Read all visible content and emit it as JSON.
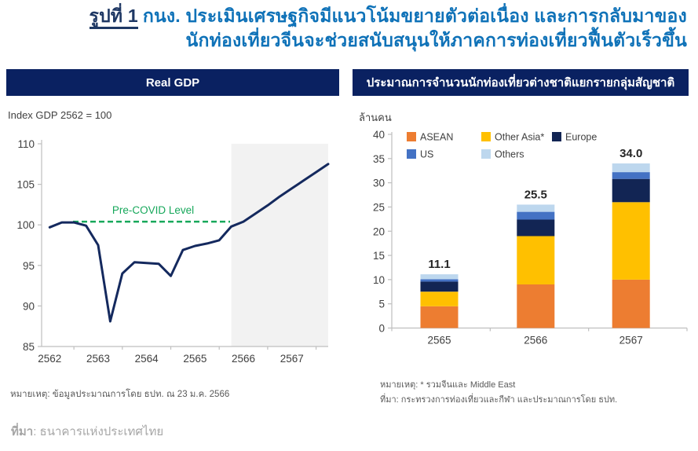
{
  "title": {
    "figure_label": "รูปที่ 1",
    "text_line1": "กนง. ประเมินเศรษฐกิจมีแนวโน้มขยายตัวต่อเนื่อง และการกลับมาของ",
    "text_line2": "นักท่องเที่ยวจีนจะช่วยสนับสนุนให้ภาคการท่องเที่ยวฟื้นตัวเร็วขึ้น"
  },
  "left_panel": {
    "header": "Real GDP",
    "unit_label": "Index GDP 2562 = 100",
    "note": "หมายเหตุ: ข้อมูลประมาณการโดย ธปท. ณ 23 ม.ค. 2566"
  },
  "right_panel": {
    "header": "ประมาณการจำนวนนักท่องเที่ยวต่างชาติแยกรายกลุ่มสัญชาติ",
    "unit_label": "ล้านคน",
    "note1": "หมายเหตุ: * รวมจีนและ Middle East",
    "note2": "ที่มา: กระทรวงการท่องเที่ยวและกีฬา และประมาณการโดย ธปท."
  },
  "footer": {
    "source_label": "ที่มา",
    "source_text": ": ธนาคารแห่งประเทศไทย"
  },
  "colors": {
    "title_figure": "#1F3864",
    "title_main": "#0F72B8",
    "header_bg": "#0A2161",
    "header_text": "#FFFFFF",
    "gdp_line": "#14295E",
    "pre_covid_green": "#17A85B",
    "forecast_shading": "#F2F2F2",
    "axis_line": "#BFBFBF",
    "tick_text": "#404040",
    "bar_label_text": "#262626",
    "note_text": "#595959",
    "footer_text": "#A6A6A6"
  },
  "chart_data": [
    {
      "type": "line",
      "title": "Real GDP",
      "ylabel": "Index GDP 2562 = 100",
      "x_years": [
        "2562",
        "2563",
        "2564",
        "2565",
        "2566",
        "2567"
      ],
      "points_per_year": 4,
      "values_quarterly": [
        99.7,
        100.3,
        100.3,
        99.9,
        97.5,
        88.1,
        94.0,
        95.4,
        95.3,
        95.2,
        93.7,
        96.9,
        97.4,
        97.7,
        98.1,
        99.8,
        100.4,
        101.4,
        102.4,
        103.5,
        104.5,
        105.5,
        106.5,
        107.5
      ],
      "ylim": [
        85,
        110
      ],
      "yticks": [
        85,
        90,
        95,
        100,
        105,
        110
      ],
      "grid": false,
      "annotation": {
        "label": "Pre-COVID Level",
        "level": 100.4,
        "style": "green-dashed-horizontal"
      },
      "forecast_region": {
        "start_quarter_index": 15,
        "style": "gray-shaded"
      }
    },
    {
      "type": "bar",
      "stacked": true,
      "categories": [
        "2565",
        "2566",
        "2567"
      ],
      "series": [
        {
          "name": "ASEAN",
          "color": "#ED7D31",
          "values": [
            4.5,
            9.0,
            10.0
          ]
        },
        {
          "name": "Other Asia*",
          "color": "#FFC000",
          "values": [
            3.0,
            10.0,
            16.0
          ]
        },
        {
          "name": "Europe",
          "color": "#122554",
          "values": [
            2.1,
            3.4,
            4.8
          ]
        },
        {
          "name": "US",
          "color": "#4472C4",
          "values": [
            0.5,
            1.6,
            1.4
          ]
        },
        {
          "name": "Others",
          "color": "#BDD7EE",
          "values": [
            1.0,
            1.5,
            1.8
          ]
        }
      ],
      "total_labels": [
        "11.1",
        "25.5",
        "34.0"
      ],
      "ylabel": "ล้านคน",
      "ylim": [
        0,
        40
      ],
      "yticks": [
        0,
        5,
        10,
        15,
        20,
        25,
        30,
        35,
        40
      ],
      "grid": false,
      "legend": {
        "position": "top-inside",
        "rows": [
          [
            "ASEAN",
            "Other Asia*",
            "Europe"
          ],
          [
            "US",
            "Others"
          ]
        ]
      }
    }
  ]
}
